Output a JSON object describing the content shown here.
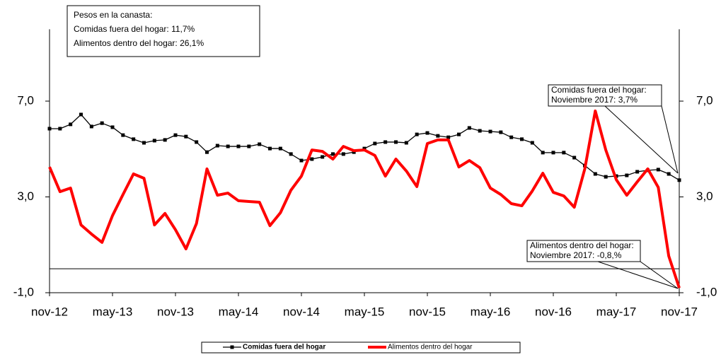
{
  "chart_data": {
    "type": "line",
    "categories": [
      "nov-12",
      null,
      null,
      null,
      null,
      null,
      "may-13",
      null,
      null,
      null,
      null,
      null,
      "nov-13",
      null,
      null,
      null,
      null,
      null,
      "may-14",
      null,
      null,
      null,
      null,
      null,
      "nov-14",
      null,
      null,
      null,
      null,
      null,
      "may-15",
      null,
      null,
      null,
      null,
      null,
      "nov-15",
      null,
      null,
      null,
      null,
      null,
      "may-16",
      null,
      null,
      null,
      null,
      null,
      "nov-16",
      null,
      null,
      null,
      null,
      null,
      "may-17",
      null,
      null,
      null,
      null,
      null,
      "nov-17"
    ],
    "series": [
      {
        "name": "Comidas fuera del hogar",
        "color": "#000000",
        "marker": "square",
        "values": [
          5.85,
          5.85,
          6.03,
          6.44,
          5.94,
          6.08,
          5.91,
          5.58,
          5.41,
          5.26,
          5.35,
          5.38,
          5.58,
          5.52,
          5.29,
          4.87,
          5.14,
          5.11,
          5.11,
          5.11,
          5.2,
          5.02,
          5.02,
          4.79,
          4.52,
          4.58,
          4.67,
          4.79,
          4.79,
          4.87,
          5.02,
          5.23,
          5.29,
          5.29,
          5.26,
          5.61,
          5.67,
          5.55,
          5.49,
          5.61,
          5.88,
          5.76,
          5.73,
          5.7,
          5.49,
          5.41,
          5.26,
          4.85,
          4.85,
          4.85,
          4.64,
          4.31,
          3.96,
          3.84,
          3.87,
          3.9,
          4.05,
          4.11,
          4.14,
          3.96,
          3.7
        ]
      },
      {
        "name": "Alimentos dentro del hogar",
        "color": "#ff0000",
        "values": [
          4.25,
          3.22,
          3.37,
          1.83,
          1.45,
          1.1,
          2.22,
          3.1,
          3.96,
          3.78,
          1.83,
          2.31,
          1.63,
          0.83,
          1.89,
          4.17,
          3.07,
          3.16,
          2.84,
          2.81,
          2.78,
          1.8,
          2.34,
          3.28,
          3.87,
          4.96,
          4.9,
          4.58,
          5.11,
          4.93,
          4.96,
          4.73,
          3.87,
          4.58,
          4.08,
          3.43,
          5.23,
          5.38,
          5.38,
          4.25,
          4.52,
          4.22,
          3.37,
          3.1,
          2.72,
          2.63,
          3.25,
          3.99,
          3.19,
          3.04,
          2.57,
          4.17,
          6.59,
          4.96,
          3.72,
          3.07,
          3.63,
          4.17,
          3.4,
          0.53,
          -0.8
        ]
      }
    ],
    "ylim": [
      -1,
      10
    ],
    "yticks": [
      {
        "value": -1,
        "label": "-1,0"
      },
      {
        "value": 3,
        "label": "3,0"
      },
      {
        "value": 7,
        "label": "7,0"
      }
    ],
    "legend": "bottom",
    "annotations": [
      [
        "Pesos en la canasta:",
        "Comidas fuera del hogar: 11,7%",
        "Alimentos dentro del hogar: 26,1%"
      ],
      [
        "Comidas fuera del hogar:",
        "Noviembre 2017: 3,7%"
      ],
      [
        "Alimentos dentro del hogar:",
        "Noviembre 2017: -0,8,%"
      ]
    ]
  }
}
